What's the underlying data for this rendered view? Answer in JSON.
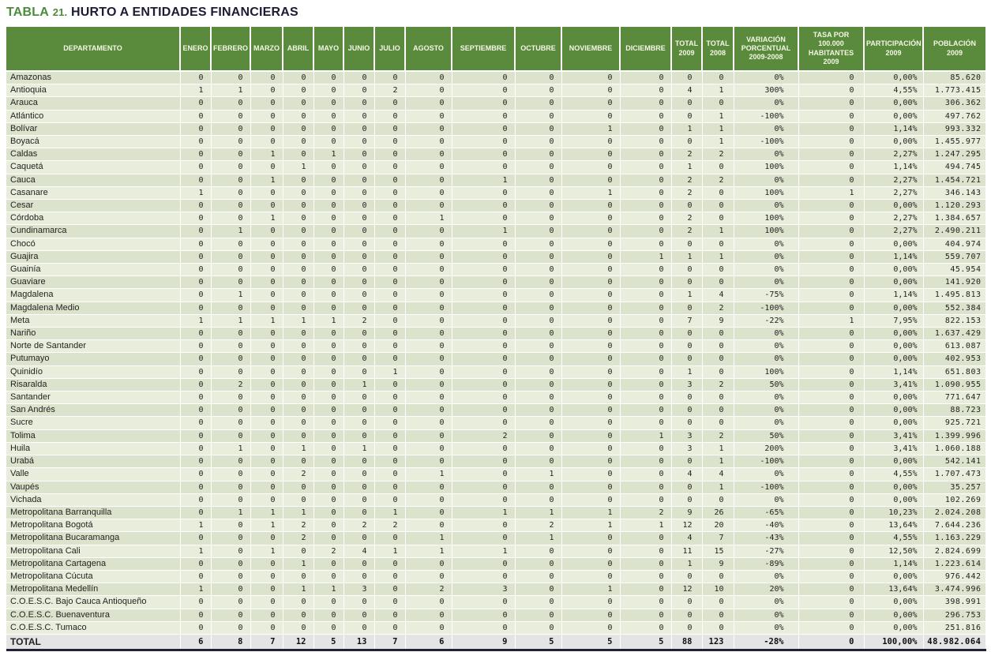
{
  "title": {
    "label": "TABLA",
    "number": "21.",
    "text": "HURTO A ENTIDADES FINANCIERAS"
  },
  "colors": {
    "title_green": "#4c8b3b",
    "title_dark": "#1b1b33",
    "header_green": "#5a8a3b",
    "header_text": "#f4f7e6",
    "row_odd": "#dce3cc",
    "row_even": "#e9eddb",
    "total_row_bg": "#e4e4e4",
    "bottom_border_dark": "#20203a"
  },
  "table": {
    "columns": [
      "DEPARTAMENTO",
      "ENERO",
      "FEBRERO",
      "MARZO",
      "ABRIL",
      "MAYO",
      "JUNIO",
      "JULIO",
      "AGOSTO",
      "SEPTIEMBRE",
      "OCTUBRE",
      "NOVIEMBRE",
      "DICIEMBRE",
      "TOTAL\n2009",
      "TOTAL\n2008",
      "VARIACIÓN\nPORCENTUAL\n2009-2008",
      "TASA POR 100.000\nHABITANTES 2009",
      "PARTICIPACIÓN\n2009",
      "POBLACIÓN\n2009"
    ],
    "rows": [
      {
        "departamento": "Amazonas",
        "meses": [
          0,
          0,
          0,
          0,
          0,
          0,
          0,
          0,
          0,
          0,
          0,
          0
        ],
        "total_2009": 0,
        "total_2008": 0,
        "variacion": "0%",
        "tasa": 0,
        "participacion": "0,00%",
        "poblacion": "85.620"
      },
      {
        "departamento": "Antioquia",
        "meses": [
          1,
          1,
          0,
          0,
          0,
          0,
          2,
          0,
          0,
          0,
          0,
          0
        ],
        "total_2009": 4,
        "total_2008": 1,
        "variacion": "300%",
        "tasa": 0,
        "participacion": "4,55%",
        "poblacion": "1.773.415"
      },
      {
        "departamento": "Arauca",
        "meses": [
          0,
          0,
          0,
          0,
          0,
          0,
          0,
          0,
          0,
          0,
          0,
          0
        ],
        "total_2009": 0,
        "total_2008": 0,
        "variacion": "0%",
        "tasa": 0,
        "participacion": "0,00%",
        "poblacion": "306.362"
      },
      {
        "departamento": "Atlántico",
        "meses": [
          0,
          0,
          0,
          0,
          0,
          0,
          0,
          0,
          0,
          0,
          0,
          0
        ],
        "total_2009": 0,
        "total_2008": 1,
        "variacion": "-100%",
        "tasa": 0,
        "participacion": "0,00%",
        "poblacion": "497.762"
      },
      {
        "departamento": "Bolívar",
        "meses": [
          0,
          0,
          0,
          0,
          0,
          0,
          0,
          0,
          0,
          0,
          1,
          0
        ],
        "total_2009": 1,
        "total_2008": 1,
        "variacion": "0%",
        "tasa": 0,
        "participacion": "1,14%",
        "poblacion": "993.332"
      },
      {
        "departamento": "Boyacá",
        "meses": [
          0,
          0,
          0,
          0,
          0,
          0,
          0,
          0,
          0,
          0,
          0,
          0
        ],
        "total_2009": 0,
        "total_2008": 1,
        "variacion": "-100%",
        "tasa": 0,
        "participacion": "0,00%",
        "poblacion": "1.455.977"
      },
      {
        "departamento": "Caldas",
        "meses": [
          0,
          0,
          1,
          0,
          1,
          0,
          0,
          0,
          0,
          0,
          0,
          0
        ],
        "total_2009": 2,
        "total_2008": 2,
        "variacion": "0%",
        "tasa": 0,
        "participacion": "2,27%",
        "poblacion": "1.247.295"
      },
      {
        "departamento": "Caquetá",
        "meses": [
          0,
          0,
          0,
          1,
          0,
          0,
          0,
          0,
          0,
          0,
          0,
          0
        ],
        "total_2009": 1,
        "total_2008": 0,
        "variacion": "100%",
        "tasa": 0,
        "participacion": "1,14%",
        "poblacion": "494.745"
      },
      {
        "departamento": "Cauca",
        "meses": [
          0,
          0,
          1,
          0,
          0,
          0,
          0,
          0,
          1,
          0,
          0,
          0
        ],
        "total_2009": 2,
        "total_2008": 2,
        "variacion": "0%",
        "tasa": 0,
        "participacion": "2,27%",
        "poblacion": "1.454.721"
      },
      {
        "departamento": "Casanare",
        "meses": [
          1,
          0,
          0,
          0,
          0,
          0,
          0,
          0,
          0,
          0,
          1,
          0
        ],
        "total_2009": 2,
        "total_2008": 0,
        "variacion": "100%",
        "tasa": 1,
        "participacion": "2,27%",
        "poblacion": "346.143"
      },
      {
        "departamento": "Cesar",
        "meses": [
          0,
          0,
          0,
          0,
          0,
          0,
          0,
          0,
          0,
          0,
          0,
          0
        ],
        "total_2009": 0,
        "total_2008": 0,
        "variacion": "0%",
        "tasa": 0,
        "participacion": "0,00%",
        "poblacion": "1.120.293"
      },
      {
        "departamento": "Córdoba",
        "meses": [
          0,
          0,
          1,
          0,
          0,
          0,
          0,
          1,
          0,
          0,
          0,
          0
        ],
        "total_2009": 2,
        "total_2008": 0,
        "variacion": "100%",
        "tasa": 0,
        "participacion": "2,27%",
        "poblacion": "1.384.657"
      },
      {
        "departamento": "Cundinamarca",
        "meses": [
          0,
          1,
          0,
          0,
          0,
          0,
          0,
          0,
          1,
          0,
          0,
          0
        ],
        "total_2009": 2,
        "total_2008": 1,
        "variacion": "100%",
        "tasa": 0,
        "participacion": "2,27%",
        "poblacion": "2.490.211"
      },
      {
        "departamento": "Chocó",
        "meses": [
          0,
          0,
          0,
          0,
          0,
          0,
          0,
          0,
          0,
          0,
          0,
          0
        ],
        "total_2009": 0,
        "total_2008": 0,
        "variacion": "0%",
        "tasa": 0,
        "participacion": "0,00%",
        "poblacion": "404.974"
      },
      {
        "departamento": "Guajira",
        "meses": [
          0,
          0,
          0,
          0,
          0,
          0,
          0,
          0,
          0,
          0,
          0,
          1
        ],
        "total_2009": 1,
        "total_2008": 1,
        "variacion": "0%",
        "tasa": 0,
        "participacion": "1,14%",
        "poblacion": "559.707"
      },
      {
        "departamento": "Guainía",
        "meses": [
          0,
          0,
          0,
          0,
          0,
          0,
          0,
          0,
          0,
          0,
          0,
          0
        ],
        "total_2009": 0,
        "total_2008": 0,
        "variacion": "0%",
        "tasa": 0,
        "participacion": "0,00%",
        "poblacion": "45.954"
      },
      {
        "departamento": "Guaviare",
        "meses": [
          0,
          0,
          0,
          0,
          0,
          0,
          0,
          0,
          0,
          0,
          0,
          0
        ],
        "total_2009": 0,
        "total_2008": 0,
        "variacion": "0%",
        "tasa": 0,
        "participacion": "0,00%",
        "poblacion": "141.920"
      },
      {
        "departamento": "Magdalena",
        "meses": [
          0,
          1,
          0,
          0,
          0,
          0,
          0,
          0,
          0,
          0,
          0,
          0
        ],
        "total_2009": 1,
        "total_2008": 4,
        "variacion": "-75%",
        "tasa": 0,
        "participacion": "1,14%",
        "poblacion": "1.495.813"
      },
      {
        "departamento": "Magdalena Medio",
        "meses": [
          0,
          0,
          0,
          0,
          0,
          0,
          0,
          0,
          0,
          0,
          0,
          0
        ],
        "total_2009": 0,
        "total_2008": 2,
        "variacion": "-100%",
        "tasa": 0,
        "participacion": "0,00%",
        "poblacion": "552.384"
      },
      {
        "departamento": "Meta",
        "meses": [
          1,
          1,
          1,
          1,
          1,
          2,
          0,
          0,
          0,
          0,
          0,
          0
        ],
        "total_2009": 7,
        "total_2008": 9,
        "variacion": "-22%",
        "tasa": 1,
        "participacion": "7,95%",
        "poblacion": "822.153"
      },
      {
        "departamento": "Nariño",
        "meses": [
          0,
          0,
          0,
          0,
          0,
          0,
          0,
          0,
          0,
          0,
          0,
          0
        ],
        "total_2009": 0,
        "total_2008": 0,
        "variacion": "0%",
        "tasa": 0,
        "participacion": "0,00%",
        "poblacion": "1.637.429"
      },
      {
        "departamento": "Norte de Santander",
        "meses": [
          0,
          0,
          0,
          0,
          0,
          0,
          0,
          0,
          0,
          0,
          0,
          0
        ],
        "total_2009": 0,
        "total_2008": 0,
        "variacion": "0%",
        "tasa": 0,
        "participacion": "0,00%",
        "poblacion": "613.087"
      },
      {
        "departamento": "Putumayo",
        "meses": [
          0,
          0,
          0,
          0,
          0,
          0,
          0,
          0,
          0,
          0,
          0,
          0
        ],
        "total_2009": 0,
        "total_2008": 0,
        "variacion": "0%",
        "tasa": 0,
        "participacion": "0,00%",
        "poblacion": "402.953"
      },
      {
        "departamento": "Quinidío",
        "meses": [
          0,
          0,
          0,
          0,
          0,
          0,
          1,
          0,
          0,
          0,
          0,
          0
        ],
        "total_2009": 1,
        "total_2008": 0,
        "variacion": "100%",
        "tasa": 0,
        "participacion": "1,14%",
        "poblacion": "651.803"
      },
      {
        "departamento": "Risaralda",
        "meses": [
          0,
          2,
          0,
          0,
          0,
          1,
          0,
          0,
          0,
          0,
          0,
          0
        ],
        "total_2009": 3,
        "total_2008": 2,
        "variacion": "50%",
        "tasa": 0,
        "participacion": "3,41%",
        "poblacion": "1.090.955"
      },
      {
        "departamento": "Santander",
        "meses": [
          0,
          0,
          0,
          0,
          0,
          0,
          0,
          0,
          0,
          0,
          0,
          0
        ],
        "total_2009": 0,
        "total_2008": 0,
        "variacion": "0%",
        "tasa": 0,
        "participacion": "0,00%",
        "poblacion": "771.647"
      },
      {
        "departamento": "San Andrés",
        "meses": [
          0,
          0,
          0,
          0,
          0,
          0,
          0,
          0,
          0,
          0,
          0,
          0
        ],
        "total_2009": 0,
        "total_2008": 0,
        "variacion": "0%",
        "tasa": 0,
        "participacion": "0,00%",
        "poblacion": "88.723"
      },
      {
        "departamento": "Sucre",
        "meses": [
          0,
          0,
          0,
          0,
          0,
          0,
          0,
          0,
          0,
          0,
          0,
          0
        ],
        "total_2009": 0,
        "total_2008": 0,
        "variacion": "0%",
        "tasa": 0,
        "participacion": "0,00%",
        "poblacion": "925.721"
      },
      {
        "departamento": "Tolima",
        "meses": [
          0,
          0,
          0,
          0,
          0,
          0,
          0,
          0,
          2,
          0,
          0,
          1
        ],
        "total_2009": 3,
        "total_2008": 2,
        "variacion": "50%",
        "tasa": 0,
        "participacion": "3,41%",
        "poblacion": "1.399.996"
      },
      {
        "departamento": "Huila",
        "meses": [
          0,
          1,
          0,
          1,
          0,
          1,
          0,
          0,
          0,
          0,
          0,
          0
        ],
        "total_2009": 3,
        "total_2008": 1,
        "variacion": "200%",
        "tasa": 0,
        "participacion": "3,41%",
        "poblacion": "1.060.188"
      },
      {
        "departamento": "Urabá",
        "meses": [
          0,
          0,
          0,
          0,
          0,
          0,
          0,
          0,
          0,
          0,
          0,
          0
        ],
        "total_2009": 0,
        "total_2008": 1,
        "variacion": "-100%",
        "tasa": 0,
        "participacion": "0,00%",
        "poblacion": "542.141"
      },
      {
        "departamento": "Valle",
        "meses": [
          0,
          0,
          0,
          2,
          0,
          0,
          0,
          1,
          0,
          1,
          0,
          0
        ],
        "total_2009": 4,
        "total_2008": 4,
        "variacion": "0%",
        "tasa": 0,
        "participacion": "4,55%",
        "poblacion": "1.707.473"
      },
      {
        "departamento": "Vaupés",
        "meses": [
          0,
          0,
          0,
          0,
          0,
          0,
          0,
          0,
          0,
          0,
          0,
          0
        ],
        "total_2009": 0,
        "total_2008": 1,
        "variacion": "-100%",
        "tasa": 0,
        "participacion": "0,00%",
        "poblacion": "35.257"
      },
      {
        "departamento": "Vichada",
        "meses": [
          0,
          0,
          0,
          0,
          0,
          0,
          0,
          0,
          0,
          0,
          0,
          0
        ],
        "total_2009": 0,
        "total_2008": 0,
        "variacion": "0%",
        "tasa": 0,
        "participacion": "0,00%",
        "poblacion": "102.269"
      },
      {
        "departamento": "Metropolitana Barranquilla",
        "meses": [
          0,
          1,
          1,
          1,
          0,
          0,
          1,
          0,
          1,
          1,
          1,
          2
        ],
        "total_2009": 9,
        "total_2008": 26,
        "variacion": "-65%",
        "tasa": 0,
        "participacion": "10,23%",
        "poblacion": "2.024.208"
      },
      {
        "departamento": "Metropolitana Bogotá",
        "meses": [
          1,
          0,
          1,
          2,
          0,
          2,
          2,
          0,
          0,
          2,
          1,
          1
        ],
        "total_2009": 12,
        "total_2008": 20,
        "variacion": "-40%",
        "tasa": 0,
        "participacion": "13,64%",
        "poblacion": "7.644.236"
      },
      {
        "departamento": "Metropolitana Bucaramanga",
        "meses": [
          0,
          0,
          0,
          2,
          0,
          0,
          0,
          1,
          0,
          1,
          0,
          0
        ],
        "total_2009": 4,
        "total_2008": 7,
        "variacion": "-43%",
        "tasa": 0,
        "participacion": "4,55%",
        "poblacion": "1.163.229"
      },
      {
        "departamento": "Metropolitana Cali",
        "meses": [
          1,
          0,
          1,
          0,
          2,
          4,
          1,
          1,
          1,
          0,
          0,
          0
        ],
        "total_2009": 11,
        "total_2008": 15,
        "variacion": "-27%",
        "tasa": 0,
        "participacion": "12,50%",
        "poblacion": "2.824.699"
      },
      {
        "departamento": "Metropolitana Cartagena",
        "meses": [
          0,
          0,
          0,
          1,
          0,
          0,
          0,
          0,
          0,
          0,
          0,
          0
        ],
        "total_2009": 1,
        "total_2008": 9,
        "variacion": "-89%",
        "tasa": 0,
        "participacion": "1,14%",
        "poblacion": "1.223.614"
      },
      {
        "departamento": "Metropolitana Cúcuta",
        "meses": [
          0,
          0,
          0,
          0,
          0,
          0,
          0,
          0,
          0,
          0,
          0,
          0
        ],
        "total_2009": 0,
        "total_2008": 0,
        "variacion": "0%",
        "tasa": 0,
        "participacion": "0,00%",
        "poblacion": "976.442"
      },
      {
        "departamento": "Metropolitana Medellín",
        "meses": [
          1,
          0,
          0,
          1,
          1,
          3,
          0,
          2,
          3,
          0,
          1,
          0
        ],
        "total_2009": 12,
        "total_2008": 10,
        "variacion": "20%",
        "tasa": 0,
        "participacion": "13,64%",
        "poblacion": "3.474.996"
      },
      {
        "departamento": "C.O.E.S.C. Bajo Cauca Antioqueño",
        "meses": [
          0,
          0,
          0,
          0,
          0,
          0,
          0,
          0,
          0,
          0,
          0,
          0
        ],
        "total_2009": 0,
        "total_2008": 0,
        "variacion": "0%",
        "tasa": 0,
        "participacion": "0,00%",
        "poblacion": "398.991"
      },
      {
        "departamento": "C.O.E.S.C. Buenaventura",
        "meses": [
          0,
          0,
          0,
          0,
          0,
          0,
          0,
          0,
          0,
          0,
          0,
          0
        ],
        "total_2009": 0,
        "total_2008": 0,
        "variacion": "0%",
        "tasa": 0,
        "participacion": "0,00%",
        "poblacion": "296.753"
      },
      {
        "departamento": "C.O.E.S.C. Tumaco",
        "meses": [
          0,
          0,
          0,
          0,
          0,
          0,
          0,
          0,
          0,
          0,
          0,
          0
        ],
        "total_2009": 0,
        "total_2008": 0,
        "variacion": "0%",
        "tasa": 0,
        "participacion": "0,00%",
        "poblacion": "251.816"
      }
    ],
    "total_row": {
      "label": "TOTAL",
      "meses": [
        6,
        8,
        7,
        12,
        5,
        13,
        7,
        6,
        9,
        5,
        5,
        5
      ],
      "total_2009": 88,
      "total_2008": 123,
      "variacion": "-28%",
      "tasa": 0,
      "participacion": "100,00%",
      "poblacion": "48.982.064"
    }
  }
}
